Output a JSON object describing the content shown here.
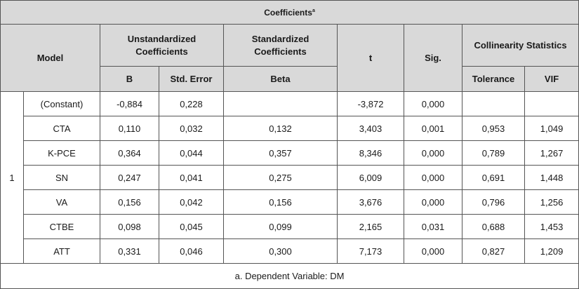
{
  "table": {
    "title": "Coefficients",
    "title_superscript": "a",
    "headers": {
      "model": "Model",
      "unstandardized": "Unstandardized Coefficients",
      "standardized": "Standardized Coefficients",
      "t": "t",
      "sig": "Sig.",
      "collinearity": "Collinearity Statistics",
      "b": "B",
      "std_error": "Std. Error",
      "beta": "Beta",
      "tolerance": "Tolerance",
      "vif": "VIF"
    },
    "model_number": "1",
    "rows": [
      {
        "name": "(Constant)",
        "b": "-0,884",
        "se": "0,228",
        "beta": "",
        "t": "-3,872",
        "sig": "0,000",
        "tol": "",
        "vif": ""
      },
      {
        "name": "CTA",
        "b": "0,110",
        "se": "0,032",
        "beta": "0,132",
        "t": "3,403",
        "sig": "0,001",
        "tol": "0,953",
        "vif": "1,049"
      },
      {
        "name": "K-PCE",
        "b": "0,364",
        "se": "0,044",
        "beta": "0,357",
        "t": "8,346",
        "sig": "0,000",
        "tol": "0,789",
        "vif": "1,267"
      },
      {
        "name": "SN",
        "b": "0,247",
        "se": "0,041",
        "beta": "0,275",
        "t": "6,009",
        "sig": "0,000",
        "tol": "0,691",
        "vif": "1,448"
      },
      {
        "name": "VA",
        "b": "0,156",
        "se": "0,042",
        "beta": "0,156",
        "t": "3,676",
        "sig": "0,000",
        "tol": "0,796",
        "vif": "1,256"
      },
      {
        "name": "CTBE",
        "b": "0,098",
        "se": "0,045",
        "beta": "0,099",
        "t": "2,165",
        "sig": "0,031",
        "tol": "0,688",
        "vif": "1,453"
      },
      {
        "name": "ATT",
        "b": "0,331",
        "se": "0,046",
        "beta": "0,300",
        "t": "7,173",
        "sig": "0,000",
        "tol": "0,827",
        "vif": "1,209"
      }
    ],
    "footnote": "a. Dependent Variable: DM"
  }
}
